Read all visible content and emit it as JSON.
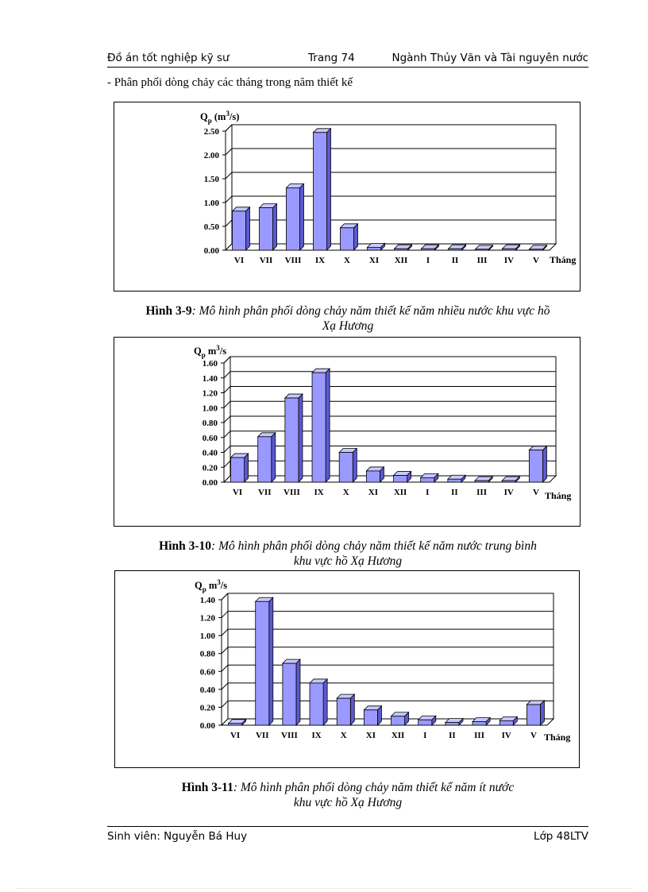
{
  "header": {
    "left": "Đồ án tốt nghiệp kỹ sư",
    "center": "Trang 74",
    "right": "Ngành Thủy Văn và Tài nguyên nước"
  },
  "intro": "- Phân phối dòng chảy các tháng trong năm  thiết kế",
  "colors": {
    "bar_front": "#9999ff",
    "bar_top": "#c8c8ff",
    "bar_side": "#5a5ad0",
    "grid": "#000000"
  },
  "charts": [
    {
      "caption_label": "Hình 3-9",
      "caption_text": ": Mô hình phân phối dòng chảy năm thiết kế năm nhiều nước khu vực hồ",
      "caption_text2": "Xạ Hương"
    },
    {
      "caption_label": "Hình 3-10",
      "caption_text": ": Mô hình phân phối dòng chảy năm thiết kế năm nước trung bình",
      "caption_text2": "khu vực hồ Xạ Hương"
    },
    {
      "caption_label": "Hình 3-11",
      "caption_text": ": Mô hình phân phối dòng chảy năm thiết kế năm ít nước",
      "caption_text2": "khu vực hồ Xạ Hương"
    }
  ],
  "chart_data": [
    {
      "type": "bar",
      "ylabel_main": "Q",
      "ylabel_sub": "p",
      "ylabel_rest": " (m",
      "ylabel_sup": "3",
      "ylabel_end": "/s)",
      "xlabel": "Tháng",
      "categories": [
        "VI",
        "VII",
        "VIII",
        "IX",
        "X",
        "XI",
        "XII",
        "I",
        "II",
        "III",
        "IV",
        "V"
      ],
      "values": [
        0.82,
        0.89,
        1.31,
        2.47,
        0.47,
        0.06,
        0.03,
        0.03,
        0.03,
        0.02,
        0.03,
        0.02
      ],
      "ylim": [
        0,
        2.5
      ],
      "ticks": [
        "0.00",
        "0.50",
        "1.00",
        "1.50",
        "2.00",
        "2.50"
      ],
      "grid": true
    },
    {
      "type": "bar",
      "ylabel_main": "Q",
      "ylabel_sub": "p",
      "ylabel_rest": " m",
      "ylabel_sup": "3",
      "ylabel_end": "/s",
      "xlabel": "Tháng",
      "categories": [
        "VI",
        "VII",
        "VIII",
        "IX",
        "X",
        "XI",
        "XII",
        "I",
        "II",
        "III",
        "IV",
        "V"
      ],
      "values": [
        0.33,
        0.61,
        1.13,
        1.47,
        0.4,
        0.15,
        0.09,
        0.06,
        0.04,
        0.02,
        0.02,
        0.43
      ],
      "ylim": [
        0,
        1.6
      ],
      "ticks": [
        "0.00",
        "0.20",
        "0.40",
        "0.60",
        "0.80",
        "1.00",
        "1.20",
        "1.40",
        "1.60"
      ],
      "grid": true
    },
    {
      "type": "bar",
      "ylabel_main": "Q",
      "ylabel_sub": "p",
      "ylabel_rest": " m",
      "ylabel_sup": "3",
      "ylabel_end": "/s",
      "xlabel": "Tháng",
      "categories": [
        "VI",
        "VII",
        "VIII",
        "IX",
        "X",
        "XI",
        "XII",
        "I",
        "II",
        "III",
        "IV",
        "V"
      ],
      "values": [
        0.02,
        1.38,
        0.69,
        0.47,
        0.3,
        0.17,
        0.1,
        0.06,
        0.03,
        0.04,
        0.05,
        0.23
      ],
      "ylim": [
        0,
        1.4
      ],
      "ticks": [
        "0.00",
        "0.20",
        "0.40",
        "0.60",
        "0.80",
        "1.00",
        "1.20",
        "1.40"
      ],
      "grid": true
    }
  ],
  "footer": {
    "left": "Sinh  viên: Nguyễn Bá Huy",
    "right": "Lớp 48LTV"
  }
}
